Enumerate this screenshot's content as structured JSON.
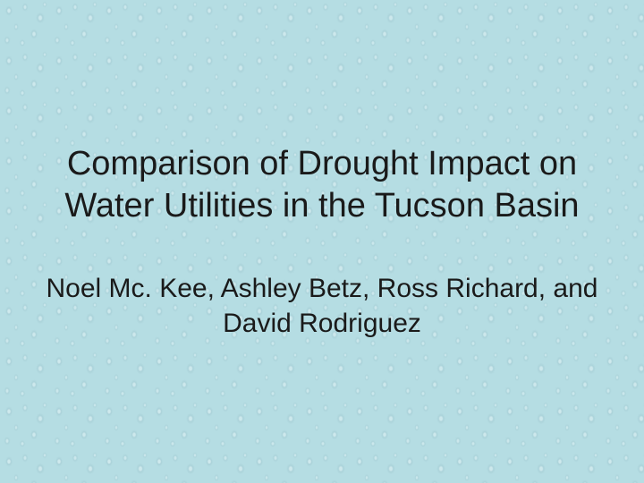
{
  "slide": {
    "title": "Comparison of Drought Impact on Water Utilities in the Tucson Basin",
    "authors": "Noel Mc. Kee, Ashley Betz, Ross Richard, and David Rodriguez",
    "title_fontsize": 38,
    "authors_fontsize": 30,
    "text_color": "#1a1a1a",
    "background_base_color": "#b5dde3",
    "droplet_highlight": "rgba(255,255,255,0.32)",
    "droplet_shadow": "rgba(140,180,190,0.23)",
    "aspect": "4:3",
    "type": "title-slide"
  }
}
